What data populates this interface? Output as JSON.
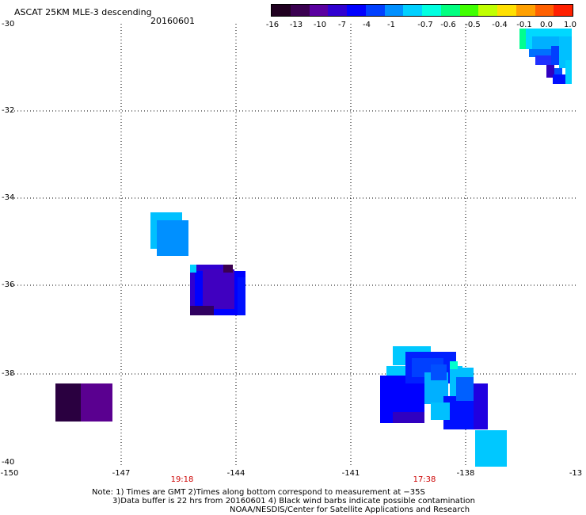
{
  "header": {
    "title": "ASCAT 25KM MLE-3 descending",
    "date": "20160601"
  },
  "colorbar": {
    "labels": [
      "-16",
      "-13",
      "-10",
      "-7",
      "-4",
      "-1",
      "-0.7",
      "-0.6",
      "-0.5",
      "-0.4",
      "-0.1",
      "0.0",
      "1.0"
    ],
    "colors": [
      "#200020",
      "#3a0050",
      "#5a00a0",
      "#3000d0",
      "#0000ff",
      "#0040ff",
      "#0090ff",
      "#00d0ff",
      "#00ffe0",
      "#00ff80",
      "#40ff00",
      "#c0ff00",
      "#ffe000",
      "#ffa000",
      "#ff6000",
      "#ff2000"
    ]
  },
  "axes": {
    "y_labels": [
      "-30",
      "-32",
      "-34",
      "-36",
      "-38",
      "-40"
    ],
    "x_labels": [
      "-150",
      "-147",
      "-144",
      "-141",
      "-138",
      "-13"
    ],
    "times": [
      "19:18",
      "17:38"
    ]
  },
  "notes": {
    "line1": "Note: 1) Times are GMT 2)Times along bottom correspond to measurement at −35S",
    "line2": "3)Data buffer is 22 hrs from 20160601 4) Black wind barbs indicate possible contamination",
    "line3": "NOAA/NESDIS/Center for Satellite Applications and Research"
  }
}
